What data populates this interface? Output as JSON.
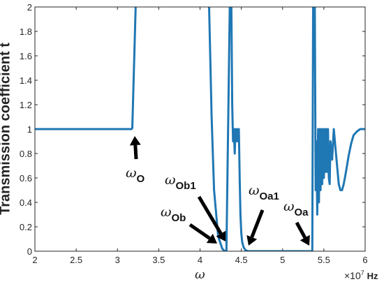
{
  "chart_data": {
    "type": "line",
    "xlabel": "ω",
    "ylabel": "Transmission coefficient  t",
    "x_exponent_label": "×10",
    "x_exponent_power": "7",
    "x_unit": "Hz",
    "xlim": [
      2,
      6
    ],
    "ylim": [
      0,
      2
    ],
    "x_ticks": [
      "2",
      "2.5",
      "3",
      "3.5",
      "4",
      "4.5",
      "5",
      "5.5",
      "6"
    ],
    "y_ticks": [
      "0",
      "0.2",
      "0.4",
      "0.6",
      "0.8",
      "1",
      "1.2",
      "1.4",
      "1.6",
      "1.8",
      "2"
    ],
    "line_color": "#1f77b4",
    "series": [
      {
        "values_description_free": true,
        "x": [
          2.0,
          3.17,
          3.18,
          3.22,
          3.23,
          4.1,
          4.11,
          4.14,
          4.17,
          4.22,
          4.27,
          4.3,
          4.32,
          4.36,
          4.37,
          4.38,
          4.39,
          4.4,
          4.41,
          4.42,
          4.43,
          4.44,
          4.45,
          4.46,
          4.47,
          4.48,
          4.49,
          4.5,
          4.51,
          4.52,
          4.53,
          4.55,
          4.58,
          4.62,
          4.7,
          4.8,
          5.0,
          5.3,
          5.34,
          5.36,
          5.37,
          5.38,
          5.39,
          5.4,
          5.41,
          5.42,
          5.43,
          5.44,
          5.45,
          5.46,
          5.47,
          5.48,
          5.49,
          5.5,
          5.51,
          5.52,
          5.53,
          5.54,
          5.55,
          5.56,
          5.57,
          5.58,
          5.6,
          5.62,
          5.64,
          5.66,
          5.68,
          5.7,
          5.72,
          5.74,
          5.76,
          5.78,
          5.8,
          5.83,
          5.86,
          5.9,
          5.94,
          5.97,
          6.0
        ],
        "y": [
          1.0,
          1.0,
          1.01,
          2.0,
          2.1,
          2.1,
          2.0,
          1.1,
          0.5,
          0.12,
          0.02,
          0.0,
          0.0,
          2.0,
          2.1,
          2.0,
          1.2,
          0.9,
          1.0,
          0.8,
          1.0,
          0.9,
          1.0,
          0.9,
          1.0,
          0.6,
          0.3,
          0.15,
          0.08,
          0.05,
          0.03,
          0.01,
          0.0,
          0.0,
          0.0,
          0.0,
          0.0,
          0.0,
          0.0,
          0.0,
          2.0,
          2.1,
          2.0,
          0.5,
          0.9,
          0.3,
          1.0,
          0.4,
          1.0,
          0.5,
          1.0,
          0.55,
          1.0,
          0.6,
          1.0,
          0.65,
          1.0,
          0.65,
          1.0,
          0.6,
          0.55,
          0.9,
          0.75,
          1.0,
          0.85,
          0.7,
          0.55,
          0.5,
          0.5,
          0.55,
          0.62,
          0.7,
          0.78,
          0.88,
          0.95,
          0.98,
          1.0,
          1.0,
          1.0
        ]
      }
    ],
    "annotations": [
      {
        "symbol": "ω",
        "sub": "O",
        "x": 3.2,
        "y": 0.9
      },
      {
        "symbol": "ω",
        "sub": "Ob1",
        "x": 4.34,
        "y": 0.0
      },
      {
        "symbol": "ω",
        "sub": "Ob",
        "x": 4.25,
        "y": 0.05
      },
      {
        "symbol": "ω",
        "sub": "Oa1",
        "x": 4.57,
        "y": 0.02
      },
      {
        "symbol": "ω",
        "sub": "Oa",
        "x": 5.33,
        "y": 0.03
      }
    ]
  }
}
